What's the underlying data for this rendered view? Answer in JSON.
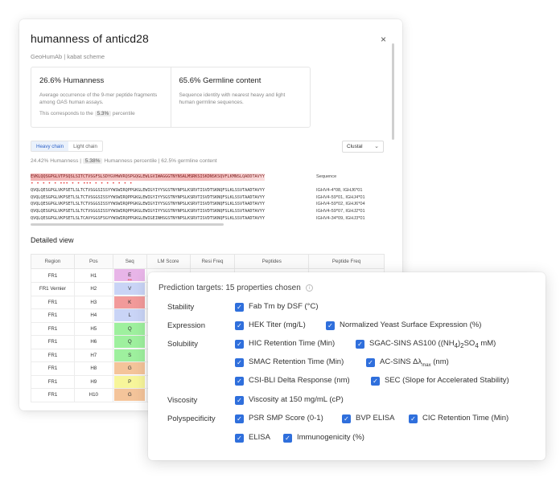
{
  "dialog": {
    "title": "humanness of anticd28",
    "close": "×",
    "subtitle": "GeoHumAb | kabat scheme",
    "humanness": {
      "head": "26.6% Humanness",
      "desc": "Average occurrence of the 9-mer peptide fragments among OAS human assays.",
      "pct_prefix": "This corresponds to the",
      "pct_value": "5.3%",
      "pct_suffix": "percentile"
    },
    "germline": {
      "head": "65.6% Germline content",
      "desc": "Sequence identity with nearest heavy and light human germline sequences."
    },
    "tabs": [
      "Heavy chain",
      "Light chain"
    ],
    "aligner": "Clustal",
    "stats": {
      "prefix": "24.42% Humanness |",
      "badge": "5.38%",
      "suffix": "Humanness percentile | 62.5% germline content"
    },
    "alignment": {
      "query_label": "Sequence",
      "query": "EVKLQQSGPGLVTPSQSLSITCTVSGFSLSDYGVHWVRQSPGQGLEWLGVIWAGGGTNYNSALMSRKSISKDNSKSQVFLKMNSLQADDTAVYY",
      "dots_top": "• •       •        •      •  •••                •  •  •••            •       •   •   • •     •  •",
      "rows": [
        {
          "seq": "QVQLQESGPGLVKPSETLSLTCTVSGGSISSYYWSWIRQPPGKGLEWIGYIYYSGSTNYNPSLKSRVTISVDTSKNQFSLKLSSVTAADTAVYY",
          "label": "IGHV4-4*08, IGHJ6*01"
        },
        {
          "seq": "QVQLQESGPGLVKPSETLSLTCTVSGGSISSYYWSWIRQPPGKGLEWIGYIYYSGSTNYNPSLKSRVTISVDTSKNQFSLKLSSVTAADTAVYY",
          "label": "IGHV4-59*01, IGHJ4*01"
        },
        {
          "seq": "QVQLQESGPGLVKPSETLSLTCTVSGGSISSYYWSWIRQPPGKGLEWIGYIYYSGSTNYNPSLKSRVTISVDTSKNQFSLKLSSVTAADTAVYY",
          "label": "IGHV4-59*02, IGHJ6*04"
        },
        {
          "seq": "QVQLQESGPGLVKPSETLSLTCTVSGGSISSYYWSWIRQPPGKGLEWIGYIYYSGSTNYNPSLKSRVTISVDTSKNQFSLKLSSVTAADTAVYY",
          "label": "IGHV4-59*07, IGHJ2*01"
        },
        {
          "seq": "QVQLQESGPGLVKPSETLSLTCAVYGGSFSGYYWSWIRQPPGKGLEWIGEINHSGSTNYNPSLKSRVTISVDTSKNQFSLKLSSVTAADTAVYY",
          "label": "IGHV4-34*09, IGHJ3*01"
        }
      ]
    },
    "detail_title": "Detailed view",
    "table": {
      "headers": [
        "Region",
        "Pos",
        "Seq",
        "LM Score",
        "Resi Freq",
        "Peptides",
        "Peptide Freq"
      ],
      "rows": [
        {
          "region": "FR1",
          "pos": "H1",
          "seq": "E",
          "color": "#e8b5e8",
          "mark": "•••"
        },
        {
          "region": "FR1 Vernier",
          "pos": "H2",
          "seq": "V",
          "color": "#c9d4f6",
          "mark": ""
        },
        {
          "region": "FR1",
          "pos": "H3",
          "seq": "K",
          "color": "#f29a9a",
          "mark": ""
        },
        {
          "region": "FR1",
          "pos": "H4",
          "seq": "L",
          "color": "#c9d4f6",
          "mark": ""
        },
        {
          "region": "FR1",
          "pos": "H5",
          "seq": "Q",
          "color": "#9ef09e",
          "mark": ""
        },
        {
          "region": "FR1",
          "pos": "H6",
          "seq": "Q",
          "color": "#9ef09e",
          "mark": ""
        },
        {
          "region": "FR1",
          "pos": "H7",
          "seq": "S",
          "color": "#9ef09e",
          "mark": ""
        },
        {
          "region": "FR1",
          "pos": "H8",
          "seq": "G",
          "color": "#f4c49a",
          "mark": ""
        },
        {
          "region": "FR1",
          "pos": "H9",
          "seq": "P",
          "color": "#f7f59a",
          "mark": ""
        },
        {
          "region": "FR1",
          "pos": "H10",
          "seq": "G",
          "color": "#f4c49a",
          "mark": ""
        }
      ]
    }
  },
  "panel": {
    "header": "Prediction targets: 15 properties chosen",
    "info_icon": "info-icon",
    "checkbox_glyph": "✓",
    "accent": "#2f6fdc",
    "categories": {
      "stability": "Stability",
      "expression": "Expression",
      "solubility": "Solubility",
      "viscosity": "Viscosity",
      "polyspecificity": "Polyspecificity"
    },
    "options": {
      "fab_tm": "Fab Tm by DSF (°C)",
      "hek_titer": "HEK Titer (mg/L)",
      "yeast_expr": "Normalized Yeast Surface Expression (%)",
      "hic": "HIC Retention Time (Min)",
      "sgac_prefix": "SGAC-SINS AS100 ((NH",
      "sgac_sub1": "4",
      "sgac_mid": ")",
      "sgac_sub2": "2",
      "sgac_mid2": "SO",
      "sgac_sub3": "4",
      "sgac_suffix": " mM)",
      "smac": "SMAC Retention Time (Min)",
      "ac_sins_prefix": "AC-SINS Δλ",
      "ac_sins_sub": "max",
      "ac_sins_suffix": " (nm)",
      "csi_bli": "CSI-BLI Delta Response (nm)",
      "sec": "SEC (Slope for Accelerated Stability)",
      "viscosity": "Viscosity at 150 mg/mL (cP)",
      "psr": "PSR SMP Score (0-1)",
      "bvp": "BVP ELISA",
      "cic": "CIC Retention Time (Min)",
      "elisa": "ELISA",
      "immuno": "Immunogenicity (%)"
    }
  }
}
